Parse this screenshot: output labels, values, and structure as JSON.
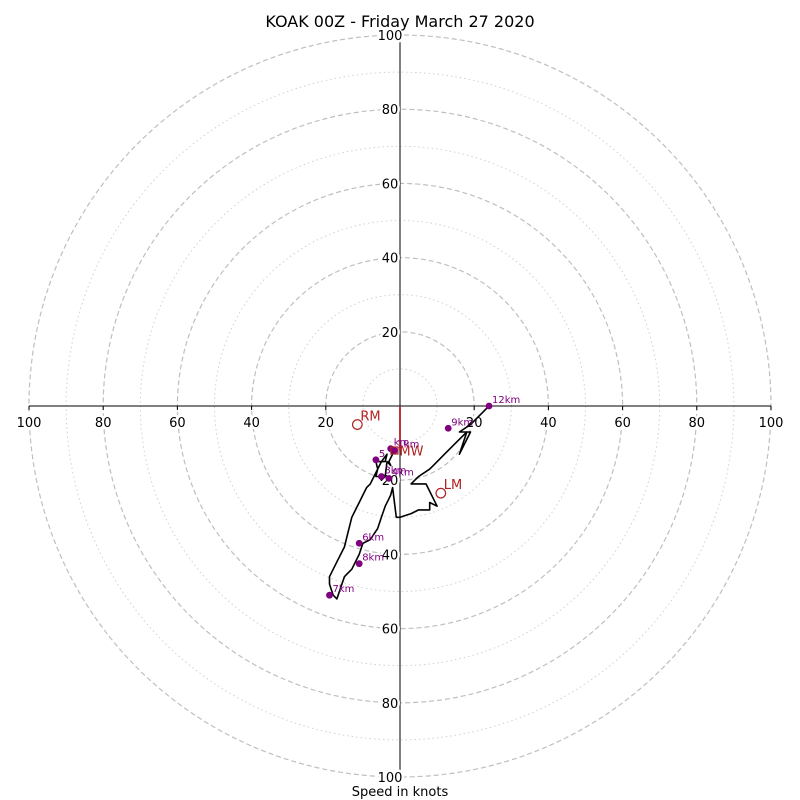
{
  "chart_data": {
    "type": "hodograph",
    "title": "KOAK 00Z - Friday March 27 2020",
    "xlabel": "Speed in knots",
    "speed_range": [
      0,
      100
    ],
    "rings_major": [
      20,
      40,
      60,
      80,
      100
    ],
    "rings_minor": [
      10,
      30,
      50,
      70,
      90
    ],
    "tick_labels": [
      "20",
      "40",
      "60",
      "80",
      "100"
    ],
    "grid": true,
    "colors": {
      "trace": "#000000",
      "markers": "#800080",
      "motion": "#b22222",
      "grid": "#bfbfbf",
      "axes": "#000000"
    },
    "hodograph_trace": {
      "u": [
        -2.5,
        -2.2,
        -2,
        -1.5,
        -3,
        -2.5,
        -3.5,
        -4,
        -5,
        -5.5,
        -6.5,
        -6,
        -6.5,
        -4,
        -3.5,
        -5,
        -8,
        -9,
        -10,
        -11,
        -12,
        -13,
        -14,
        -15,
        -17,
        -19,
        -19,
        -18,
        -17,
        -15,
        -13,
        -11,
        -10,
        -8,
        -6,
        -5,
        -4,
        -3,
        -2.5,
        -2,
        -1,
        0,
        3,
        5,
        8,
        8,
        10,
        7,
        3,
        4,
        5,
        8,
        9,
        11,
        12,
        15,
        18,
        16,
        17,
        19,
        16,
        19,
        22,
        24
      ],
      "v": [
        -11,
        -12,
        -13,
        -12,
        -15,
        -16,
        -15,
        -19,
        -20,
        -19,
        -19,
        -17,
        -15,
        -15,
        -13,
        -15,
        -21,
        -22,
        -24,
        -26,
        -28,
        -30,
        -34,
        -38,
        -42,
        -46,
        -48,
        -51,
        -52,
        -46,
        -44,
        -40,
        -37,
        -36,
        -33,
        -30,
        -27,
        -25,
        -24,
        -22,
        -30,
        -30,
        -29,
        -28,
        -28,
        -26,
        -27,
        -21,
        -21,
        -20,
        -19,
        -17,
        -16,
        -14,
        -13,
        -10,
        -7,
        -13,
        -11,
        -7,
        -7,
        -5,
        -2,
        0
      ]
    },
    "height_markers": [
      {
        "label": "km",
        "u": -2.5,
        "v": -11.5
      },
      {
        "label": "1km",
        "u": -1.5,
        "v": -12
      },
      {
        "label": "5",
        "u": -6.5,
        "v": -14.5
      },
      {
        "label": "3km",
        "u": -5,
        "v": -19
      },
      {
        "label": "4km",
        "u": -3,
        "v": -19.5
      },
      {
        "label": "6km",
        "u": -11,
        "v": -37
      },
      {
        "label": "8km",
        "u": -11,
        "v": -42.5
      },
      {
        "label": "7km",
        "u": -19,
        "v": -51
      },
      {
        "label": "9km",
        "u": 13,
        "v": -6
      },
      {
        "label": "12km",
        "u": 24,
        "v": 0
      }
    ],
    "storm_motion": [
      {
        "label": "RM",
        "u": -11.5,
        "v": -5
      },
      {
        "label": "LM",
        "u": 11,
        "v": -23.5
      },
      {
        "label": "MW",
        "u": -1.5,
        "v": -12
      }
    ],
    "shear_vector": {
      "from_u": 0,
      "from_v": 0,
      "to_u": 0,
      "to_v": -12
    }
  }
}
